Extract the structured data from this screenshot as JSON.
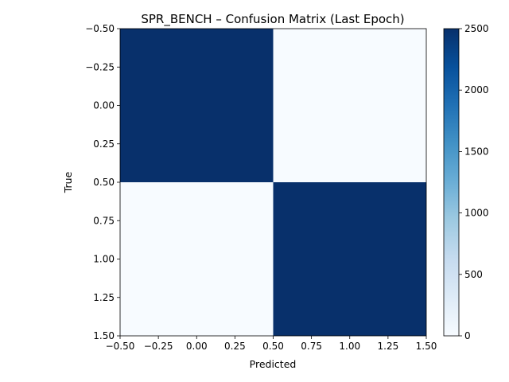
{
  "chart_data": {
    "type": "heatmap",
    "title": "SPR_BENCH – Confusion Matrix (Last Epoch)",
    "xlabel": "Predicted",
    "ylabel": "True",
    "rows": [
      0,
      1
    ],
    "cols": [
      0,
      1
    ],
    "values": [
      [
        2500,
        0
      ],
      [
        0,
        2500
      ]
    ],
    "xlim": [
      -0.5,
      1.5
    ],
    "ylim": [
      1.5,
      -0.5
    ],
    "xticks": [
      "−0.50",
      "−0.25",
      "0.00",
      "0.25",
      "0.50",
      "0.75",
      "1.00",
      "1.25",
      "1.50"
    ],
    "yticks": [
      "−0.50",
      "−0.25",
      "0.00",
      "0.25",
      "0.50",
      "0.75",
      "1.00",
      "1.25",
      "1.50"
    ],
    "colorbar": {
      "range": [
        0,
        2500
      ],
      "ticks": [
        "0",
        "500",
        "1000",
        "1500",
        "2000",
        "2500"
      ],
      "colormap": "Blues",
      "low_color": "#f7fbff",
      "high_color": "#08306b"
    }
  }
}
